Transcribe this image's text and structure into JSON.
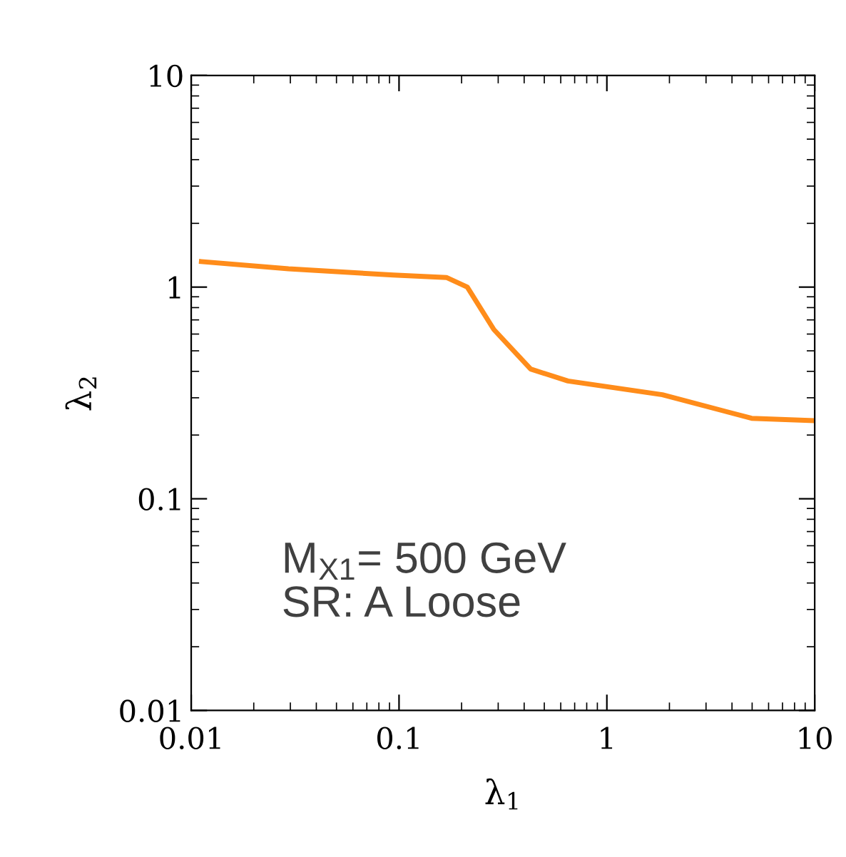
{
  "chart_data": {
    "type": "line",
    "xlabel": "λ$_{1}$",
    "ylabel": "λ$_{2}$",
    "log": "xy",
    "xlim": [
      0.01,
      10
    ],
    "ylim": [
      0.01,
      10
    ],
    "xticks": [
      0.01,
      0.1,
      1,
      10
    ],
    "yticks": [
      0.01,
      0.1,
      1,
      10
    ],
    "grid": false,
    "legend": false,
    "marker": "none",
    "line_style": "solid",
    "series": [
      {
        "color": "#ff8c1a",
        "x": [
          0.0112,
          0.0294,
          0.094,
          0.169,
          0.213,
          0.286,
          0.43,
          0.65,
          1.85,
          4.97,
          9.7
        ],
        "values": [
          1.32,
          1.22,
          1.14,
          1.11,
          1.0,
          0.63,
          0.41,
          0.36,
          0.31,
          0.24,
          0.234
        ]
      }
    ],
    "annotations": [
      "M$_{X1}$= 500 GeV\nSR: A Loose"
    ]
  }
}
